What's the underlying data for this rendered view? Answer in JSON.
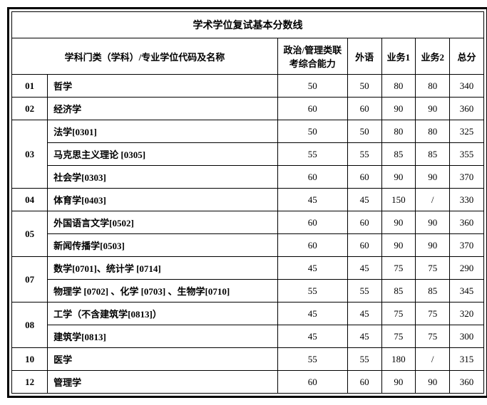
{
  "title": "学术学位复试基本分数线",
  "headers": {
    "category": "学科门类（学科）/专业学位代码及名称",
    "politics": "政治/管理类联考综合能力",
    "foreign": "外语",
    "business1": "业务1",
    "business2": "业务2",
    "total": "总分"
  },
  "rows": [
    {
      "code": "01",
      "name": "哲学",
      "pol": "50",
      "fl": "50",
      "b1": "80",
      "b2": "80",
      "total": "340"
    },
    {
      "code": "02",
      "name": "经济学",
      "pol": "60",
      "fl": "60",
      "b1": "90",
      "b2": "90",
      "total": "360"
    },
    {
      "code": "03",
      "name": "法学[0301]",
      "pol": "50",
      "fl": "50",
      "b1": "80",
      "b2": "80",
      "total": "325",
      "rowspan": 3
    },
    {
      "code": "",
      "name": "马克思主义理论 [0305]",
      "pol": "55",
      "fl": "55",
      "b1": "85",
      "b2": "85",
      "total": "355"
    },
    {
      "code": "",
      "name": "社会学[0303]",
      "pol": "60",
      "fl": "60",
      "b1": "90",
      "b2": "90",
      "total": "370"
    },
    {
      "code": "04",
      "name": "体育学[0403]",
      "pol": "45",
      "fl": "45",
      "b1": "150",
      "b2": "/",
      "total": "330"
    },
    {
      "code": "05",
      "name": "外国语言文学[0502]",
      "pol": "60",
      "fl": "60",
      "b1": "90",
      "b2": "90",
      "total": "360",
      "rowspan": 2
    },
    {
      "code": "",
      "name": "新闻传播学[0503]",
      "pol": "60",
      "fl": "60",
      "b1": "90",
      "b2": "90",
      "total": "370"
    },
    {
      "code": "07",
      "name": "数学[0701]、统计学 [0714]",
      "pol": "45",
      "fl": "45",
      "b1": "75",
      "b2": "75",
      "total": "290",
      "rowspan": 2
    },
    {
      "code": "",
      "name": "物理学 [0702] 、化学 [0703] 、生物学[0710]",
      "pol": "55",
      "fl": "55",
      "b1": "85",
      "b2": "85",
      "total": "345"
    },
    {
      "code": "08",
      "name": "工学（不含建筑学[0813]）",
      "pol": "45",
      "fl": "45",
      "b1": "75",
      "b2": "75",
      "total": "320",
      "rowspan": 2
    },
    {
      "code": "",
      "name": "建筑学[0813]",
      "pol": "45",
      "fl": "45",
      "b1": "75",
      "b2": "75",
      "total": "300"
    },
    {
      "code": "10",
      "name": "医学",
      "pol": "55",
      "fl": "55",
      "b1": "180",
      "b2": "/",
      "total": "315"
    },
    {
      "code": "12",
      "name": "管理学",
      "pol": "60",
      "fl": "60",
      "b1": "90",
      "b2": "90",
      "total": "360"
    }
  ]
}
